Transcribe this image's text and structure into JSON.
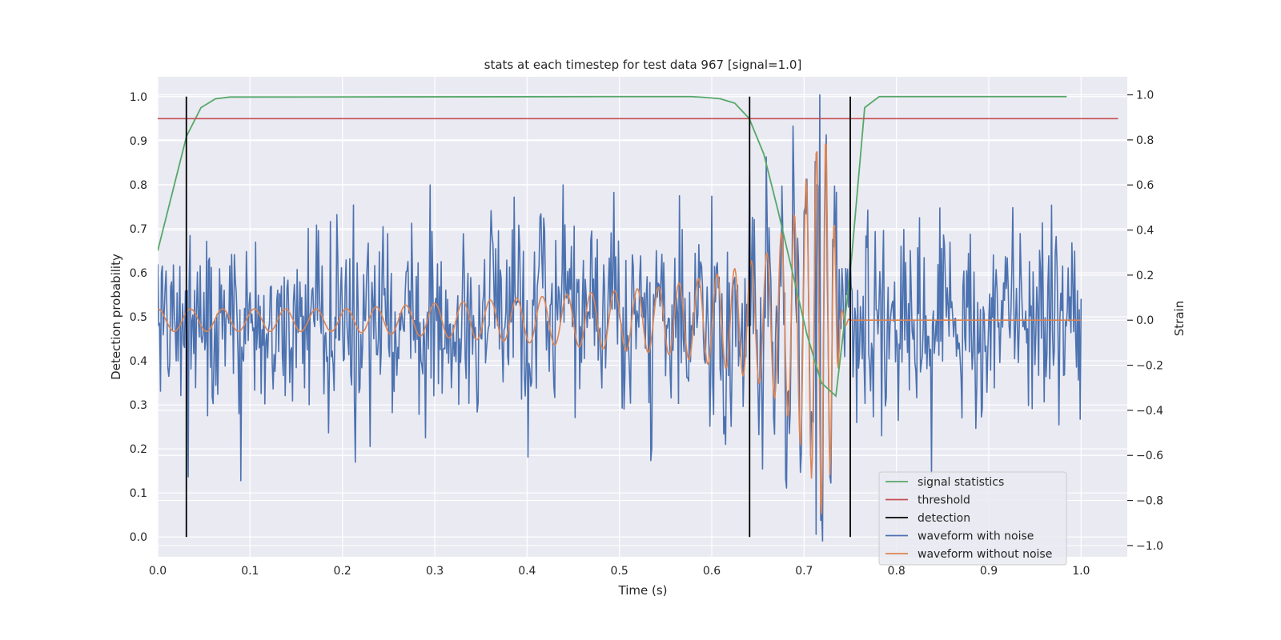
{
  "chart_data": {
    "type": "line",
    "title": "stats at each timestep for test data 967 [signal=1.0]",
    "xlabel": "Time (s)",
    "ylabel_left": "Detection probability",
    "ylabel_right": "Strain",
    "xlim": [
      0.0,
      1.05
    ],
    "ylim_left": [
      -0.045,
      1.045
    ],
    "ylim_right": [
      -1.05,
      1.08
    ],
    "x_ticks": [
      "0.0",
      "0.1",
      "0.2",
      "0.3",
      "0.4",
      "0.5",
      "0.6",
      "0.7",
      "0.8",
      "0.9",
      "1.0"
    ],
    "y_ticks_left": [
      "0.0",
      "0.1",
      "0.2",
      "0.3",
      "0.4",
      "0.5",
      "0.6",
      "0.7",
      "0.8",
      "0.9",
      "1.0"
    ],
    "y_ticks_right": [
      "−1.0",
      "−0.8",
      "−0.6",
      "−0.4",
      "−0.2",
      "0.0",
      "0.2",
      "0.4",
      "0.6",
      "0.8",
      "1.0"
    ],
    "grid": true,
    "legend_position": "lower-right",
    "colors": {
      "background": "#eaeaf2",
      "grid": "#ffffff",
      "signal_statistics": "#55a868",
      "threshold": "#c44e52",
      "detection": "#000000",
      "waveform_with_noise": "#4c72b0",
      "waveform_without_noise": "#dd8452"
    },
    "series": [
      {
        "name": "signal statistics",
        "axis": "left",
        "x": [
          0.0,
          0.0156,
          0.0312,
          0.0469,
          0.0625,
          0.0781,
          0.5,
          0.5781,
          0.5938,
          0.6094,
          0.625,
          0.6406,
          0.6563,
          0.6719,
          0.6875,
          0.7031,
          0.7188,
          0.7344,
          0.75,
          0.7656,
          0.7813,
          0.9844
        ],
        "values": [
          0.65,
          0.78,
          0.91,
          0.975,
          0.995,
          0.999,
          1.0,
          1.0,
          0.998,
          0.995,
          0.985,
          0.95,
          0.87,
          0.74,
          0.6,
          0.46,
          0.35,
          0.32,
          0.6,
          0.975,
          1.0,
          1.0
        ]
      },
      {
        "name": "threshold",
        "axis": "left",
        "x": [
          0.0,
          1.04
        ],
        "values": [
          0.95,
          0.95
        ]
      },
      {
        "name": "detection",
        "axis": "left",
        "type": "vlines",
        "x": [
          0.031,
          0.641,
          0.75
        ],
        "ymin": 0.0,
        "ymax": 1.0
      },
      {
        "name": "waveform with noise",
        "axis": "right",
        "x_range": [
          0.0,
          1.0
        ],
        "description_stats": {
          "std": 0.2,
          "min": -0.98,
          "max": 1.0
        },
        "peaks": [
          {
            "x": 0.295,
            "value": 0.6
          },
          {
            "x": 0.214,
            "value": -0.63
          },
          {
            "x": 0.717,
            "value": 1.0
          },
          {
            "x": 0.72,
            "value": -0.98
          },
          {
            "x": 0.713,
            "value": -0.95
          },
          {
            "x": 0.838,
            "value": -0.68
          },
          {
            "x": 0.6,
            "value": 0.55
          },
          {
            "x": 0.655,
            "value": -0.66
          }
        ]
      },
      {
        "name": "waveform without noise",
        "axis": "right",
        "x_range": [
          0.0,
          1.0
        ],
        "envelope": [
          [
            0.0,
            0.05
          ],
          [
            0.2,
            0.05
          ],
          [
            0.4,
            0.1
          ],
          [
            0.55,
            0.15
          ],
          [
            0.62,
            0.22
          ],
          [
            0.66,
            0.3
          ],
          [
            0.69,
            0.48
          ],
          [
            0.712,
            0.75
          ],
          [
            0.72,
            0.9
          ],
          [
            0.727,
            0.75
          ],
          [
            0.74,
            0.05
          ],
          [
            0.75,
            0.0
          ],
          [
            1.0,
            0.0
          ]
        ],
        "frequency_hz": [
          [
            0.0,
            28
          ],
          [
            0.3,
            32
          ],
          [
            0.5,
            40
          ],
          [
            0.6,
            50
          ],
          [
            0.66,
            60
          ],
          [
            0.7,
            80
          ],
          [
            0.74,
            120
          ]
        ]
      }
    ]
  }
}
